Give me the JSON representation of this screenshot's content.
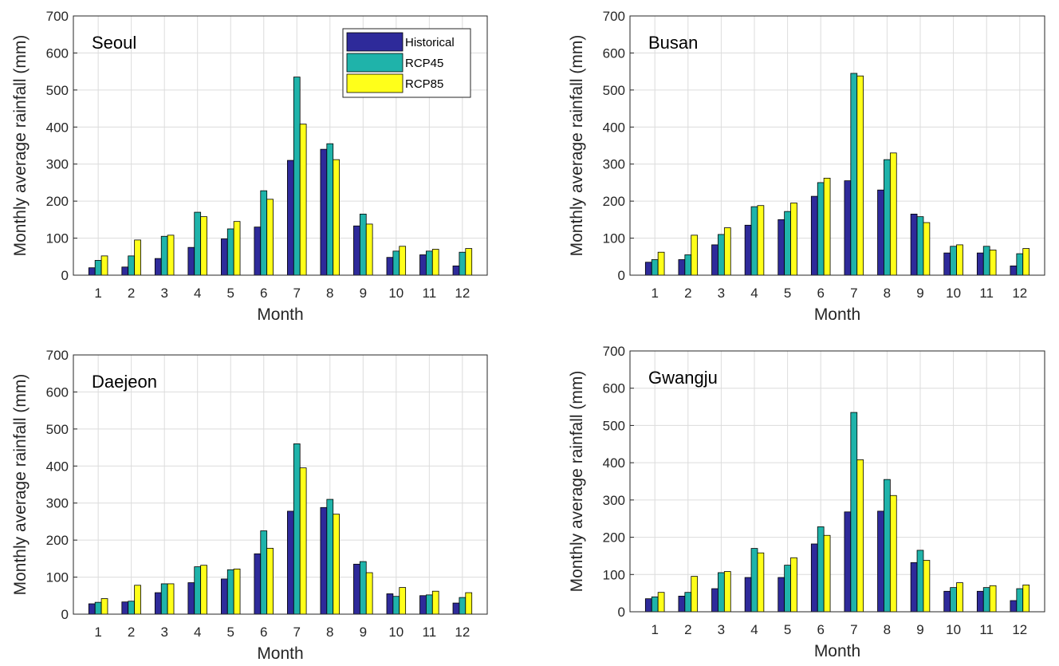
{
  "chart_data": [
    {
      "type": "bar",
      "title": "Seoul",
      "xlabel": "Month",
      "ylabel": "Monthly average rainfall (mm)",
      "categories": [
        "1",
        "2",
        "3",
        "4",
        "5",
        "6",
        "7",
        "8",
        "9",
        "10",
        "11",
        "12"
      ],
      "ylim": [
        0,
        700
      ],
      "yticks": [
        "0",
        "100",
        "200",
        "300",
        "400",
        "500",
        "600",
        "700"
      ],
      "grid": true,
      "legend": "top-right",
      "series": [
        {
          "name": "Historical",
          "values": [
            20,
            22,
            45,
            75,
            98,
            130,
            310,
            340,
            133,
            48,
            55,
            25
          ]
        },
        {
          "name": "RCP45",
          "values": [
            40,
            52,
            105,
            170,
            125,
            228,
            535,
            355,
            165,
            65,
            65,
            62
          ]
        },
        {
          "name": "RCP85",
          "values": [
            52,
            95,
            108,
            158,
            145,
            205,
            408,
            312,
            138,
            78,
            70,
            72
          ]
        }
      ]
    },
    {
      "type": "bar",
      "title": "Busan",
      "xlabel": "Month",
      "ylabel": "Monthly average rainfall (mm)",
      "categories": [
        "1",
        "2",
        "3",
        "4",
        "5",
        "6",
        "7",
        "8",
        "9",
        "10",
        "11",
        "12"
      ],
      "ylim": [
        0,
        700
      ],
      "yticks": [
        "0",
        "100",
        "200",
        "300",
        "400",
        "500",
        "600",
        "700"
      ],
      "grid": true,
      "series": [
        {
          "name": "Historical",
          "values": [
            35,
            42,
            82,
            135,
            150,
            213,
            255,
            230,
            165,
            60,
            60,
            25
          ]
        },
        {
          "name": "RCP45",
          "values": [
            42,
            55,
            110,
            185,
            172,
            250,
            545,
            312,
            158,
            78,
            78,
            58
          ]
        },
        {
          "name": "RCP85",
          "values": [
            62,
            108,
            128,
            188,
            195,
            262,
            538,
            330,
            142,
            82,
            68,
            72
          ]
        }
      ]
    },
    {
      "type": "bar",
      "title": "Daejeon",
      "xlabel": "Month",
      "ylabel": "Monthly average rainfall (mm)",
      "categories": [
        "1",
        "2",
        "3",
        "4",
        "5",
        "6",
        "7",
        "8",
        "9",
        "10",
        "11",
        "12"
      ],
      "ylim": [
        0,
        700
      ],
      "yticks": [
        "0",
        "100",
        "200",
        "300",
        "400",
        "500",
        "600",
        "700"
      ],
      "grid": true,
      "series": [
        {
          "name": "Historical",
          "values": [
            28,
            33,
            58,
            85,
            95,
            163,
            278,
            288,
            135,
            55,
            50,
            30
          ]
        },
        {
          "name": "RCP45",
          "values": [
            32,
            35,
            82,
            128,
            120,
            225,
            460,
            310,
            142,
            48,
            52,
            45
          ]
        },
        {
          "name": "RCP85",
          "values": [
            42,
            78,
            82,
            132,
            122,
            178,
            395,
            270,
            112,
            72,
            62,
            58
          ]
        }
      ]
    },
    {
      "type": "bar",
      "title": "Gwangju",
      "xlabel": "Month",
      "ylabel": "Monthly average rainfall (mm)",
      "categories": [
        "1",
        "2",
        "3",
        "4",
        "5",
        "6",
        "7",
        "8",
        "9",
        "10",
        "11",
        "12"
      ],
      "ylim": [
        0,
        700
      ],
      "yticks": [
        "0",
        "100",
        "200",
        "300",
        "400",
        "500",
        "600",
        "700"
      ],
      "grid": true,
      "series": [
        {
          "name": "Historical",
          "values": [
            35,
            42,
            62,
            92,
            92,
            182,
            268,
            270,
            132,
            55,
            55,
            30
          ]
        },
        {
          "name": "RCP45",
          "values": [
            40,
            52,
            105,
            170,
            125,
            228,
            535,
            355,
            165,
            65,
            65,
            62
          ]
        },
        {
          "name": "RCP85",
          "values": [
            52,
            95,
            108,
            158,
            145,
            205,
            408,
            312,
            138,
            78,
            70,
            72
          ]
        }
      ]
    }
  ],
  "colors": {
    "Historical": "#2e2a9a",
    "RCP45": "#1fb3aa",
    "RCP85": "#ffff1a"
  }
}
